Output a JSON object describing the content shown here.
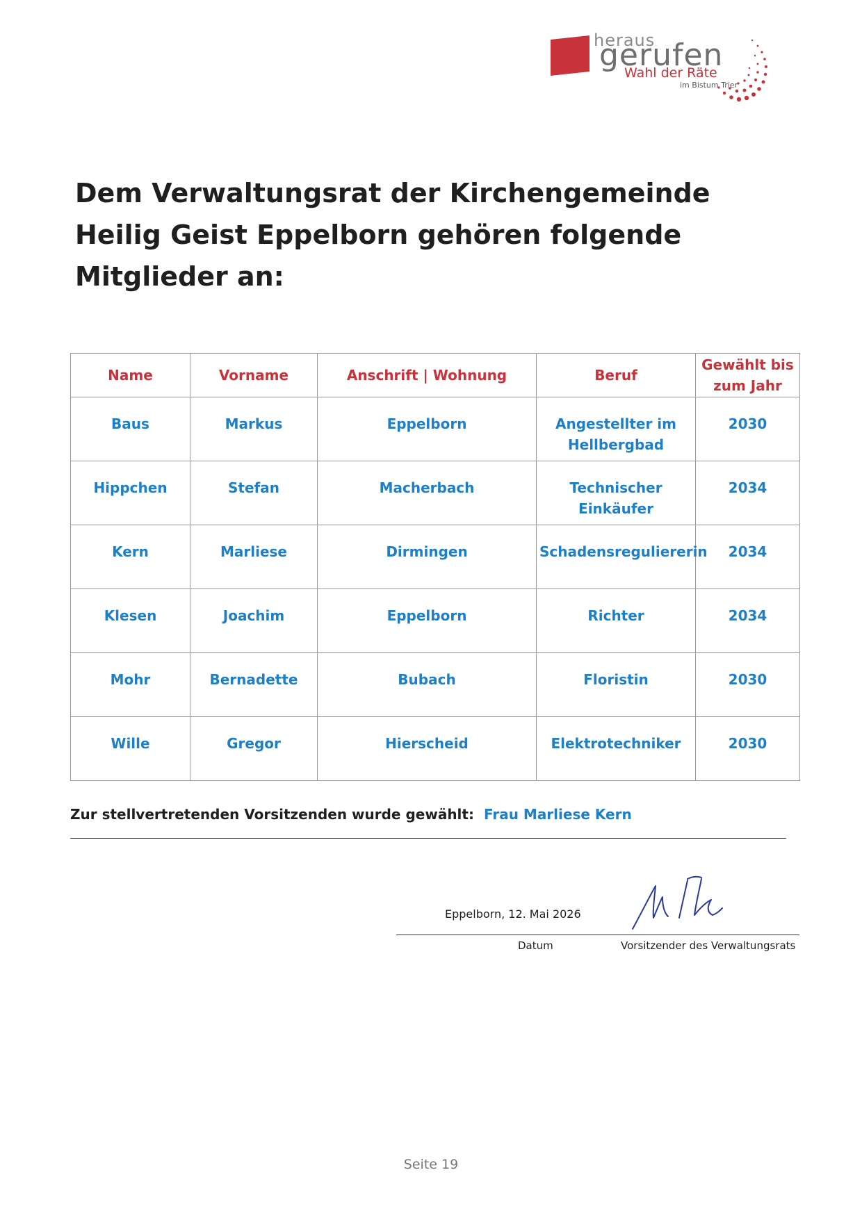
{
  "logo": {
    "line1": "heraus",
    "line2": "gerufen",
    "line3": "Wahl der Räte",
    "line4": "im Bistum Trier"
  },
  "title": "Dem Verwaltungsrat der Kirchengemeinde Heilig Geist Eppelborn gehören folgende Mitglieder an:",
  "table": {
    "headers": [
      "Name",
      "Vorname",
      "Anschrift | Wohnung",
      "Beruf",
      "Gewählt bis zum Jahr"
    ],
    "rows": [
      [
        "Baus",
        "Markus",
        "Eppelborn",
        "Angestellter im Hellbergbad",
        "2030"
      ],
      [
        "Hippchen",
        "Stefan",
        "Macherbach",
        "Technischer Einkäufer",
        "2034"
      ],
      [
        "Kern",
        "Marliese",
        "Dirmingen",
        "Schadensreguliererin",
        "2034"
      ],
      [
        "Klesen",
        "Joachim",
        "Eppelborn",
        "Richter",
        "2034"
      ],
      [
        "Mohr",
        "Bernadette",
        "Bubach",
        "Floristin",
        "2030"
      ],
      [
        "Wille",
        "Gregor",
        "Hierscheid",
        "Elektrotechniker",
        "2030"
      ]
    ]
  },
  "deputy": {
    "label": "Zur stellvertretenden Vorsitzenden wurde gewählt:",
    "name": "Frau Marliese Kern"
  },
  "signature_block": {
    "place_date": "Eppelborn, 12. Mai 2026",
    "date_label": "Datum",
    "role_label": "Vorsitzender des Verwaltungsrats"
  },
  "page_number": "Seite 19",
  "colors": {
    "header_red": "#c8323a",
    "value_blue": "#1f7fc4"
  }
}
